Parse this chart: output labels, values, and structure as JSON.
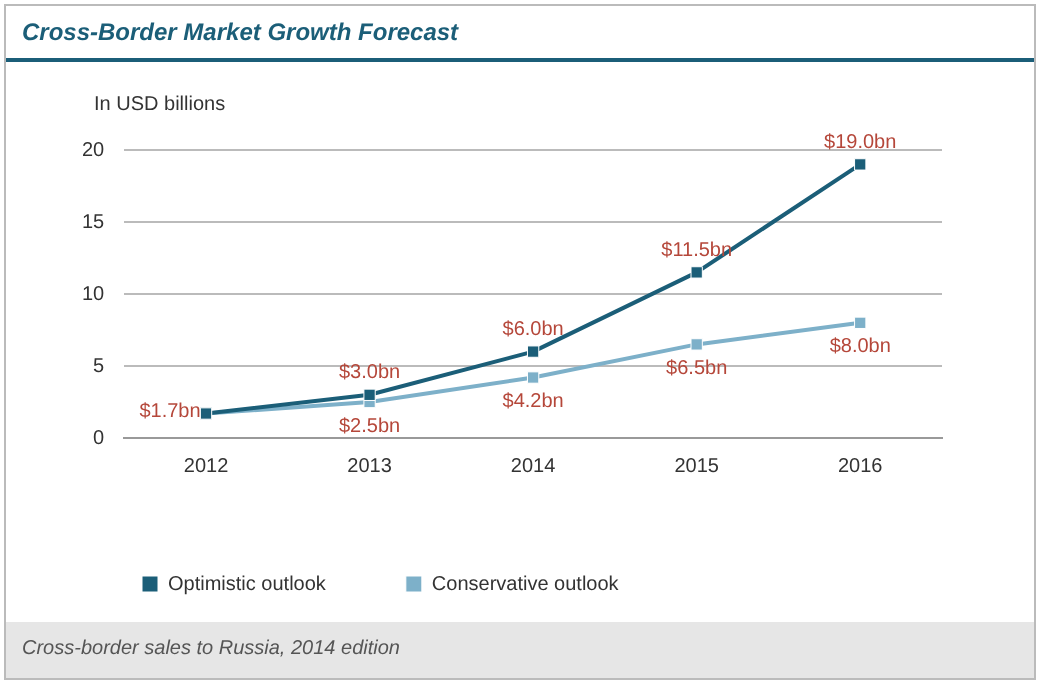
{
  "chart_data": {
    "type": "line",
    "title": "Cross-Border Market Growth Forecast",
    "ylabel": "In USD billions",
    "categories": [
      "2012",
      "2013",
      "2014",
      "2015",
      "2016"
    ],
    "series": [
      {
        "name": "Optimistic outlook",
        "color": "#1b5e78",
        "values": [
          1.7,
          3.0,
          6.0,
          11.5,
          19.0
        ],
        "value_labels": [
          "$1.7bn",
          "$3.0bn",
          "$6.0bn",
          "$11.5bn",
          "$19.0bn"
        ]
      },
      {
        "name": "Conservative outlook",
        "color": "#7db0c9",
        "values": [
          1.7,
          2.5,
          4.2,
          6.5,
          8.0
        ],
        "value_labels": [
          null,
          "$2.5bn",
          "$4.2bn",
          "$6.5bn",
          "$8.0bn"
        ]
      }
    ],
    "ylim": [
      0,
      20
    ],
    "yticks": [
      0,
      5,
      10,
      15,
      20
    ],
    "grid": "y",
    "legend": "bottom left",
    "marker": "square",
    "line_style": "solid",
    "annotations": [
      "Cross-border sales to Russia, 2014 edition"
    ]
  }
}
